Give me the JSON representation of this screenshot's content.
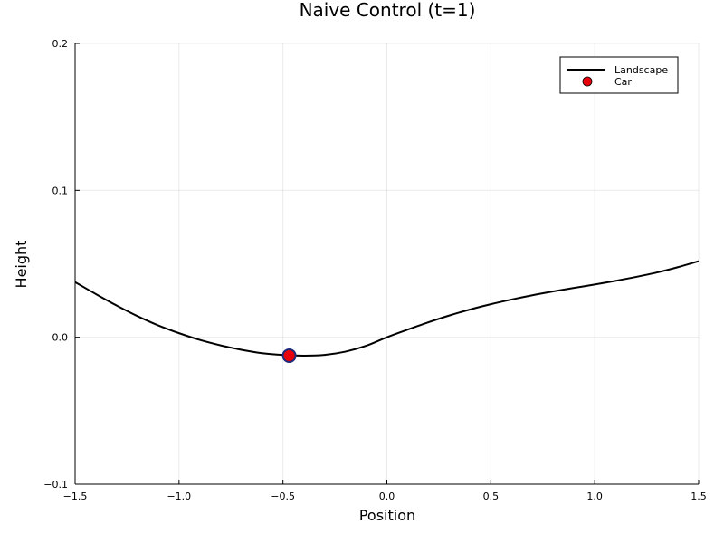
{
  "chart_data": {
    "type": "line",
    "title": "Naive Control (t=1)",
    "xlabel": "Position",
    "ylabel": "Height",
    "xlim": [
      -1.5,
      1.5
    ],
    "ylim": [
      -0.1,
      0.2
    ],
    "xticks": [
      -1.5,
      -1.0,
      -0.5,
      0.0,
      0.5,
      1.0,
      1.5
    ],
    "yticks": [
      -0.1,
      0.0,
      0.1,
      0.2
    ],
    "xtick_labels": [
      "−1.5",
      "−1.0",
      "−0.5",
      "0.0",
      "0.5",
      "1.0",
      "1.5"
    ],
    "ytick_labels": [
      "−0.1",
      "0.0",
      "0.1",
      "0.2"
    ],
    "grid": true,
    "legend_position": "top-right",
    "series": [
      {
        "name": "Landscape",
        "kind": "line",
        "color": "#000000",
        "x": [
          -1.5,
          -1.4,
          -1.3,
          -1.2,
          -1.1,
          -1.0,
          -0.9,
          -0.8,
          -0.7,
          -0.6,
          -0.5,
          -0.4,
          -0.3,
          -0.2,
          -0.1,
          0.0,
          0.1,
          0.2,
          0.3,
          0.4,
          0.5,
          0.6,
          0.7,
          0.8,
          0.9,
          1.0,
          1.1,
          1.2,
          1.3,
          1.4,
          1.5
        ],
        "y": [
          0.0375,
          0.0294,
          0.0216,
          0.0144,
          0.0081,
          0.0028,
          -0.0018,
          -0.0055,
          -0.0085,
          -0.0108,
          -0.012,
          -0.0125,
          -0.012,
          -0.0098,
          -0.0058,
          0.0,
          0.0052,
          0.0102,
          0.0148,
          0.0189,
          0.0225,
          0.0257,
          0.0286,
          0.0312,
          0.0336,
          0.0359,
          0.0384,
          0.0411,
          0.0441,
          0.0477,
          0.0518
        ]
      },
      {
        "name": "Car",
        "kind": "scatter",
        "color": "#e8000b",
        "x": [
          -0.47
        ],
        "y": [
          -0.0125
        ]
      }
    ]
  }
}
